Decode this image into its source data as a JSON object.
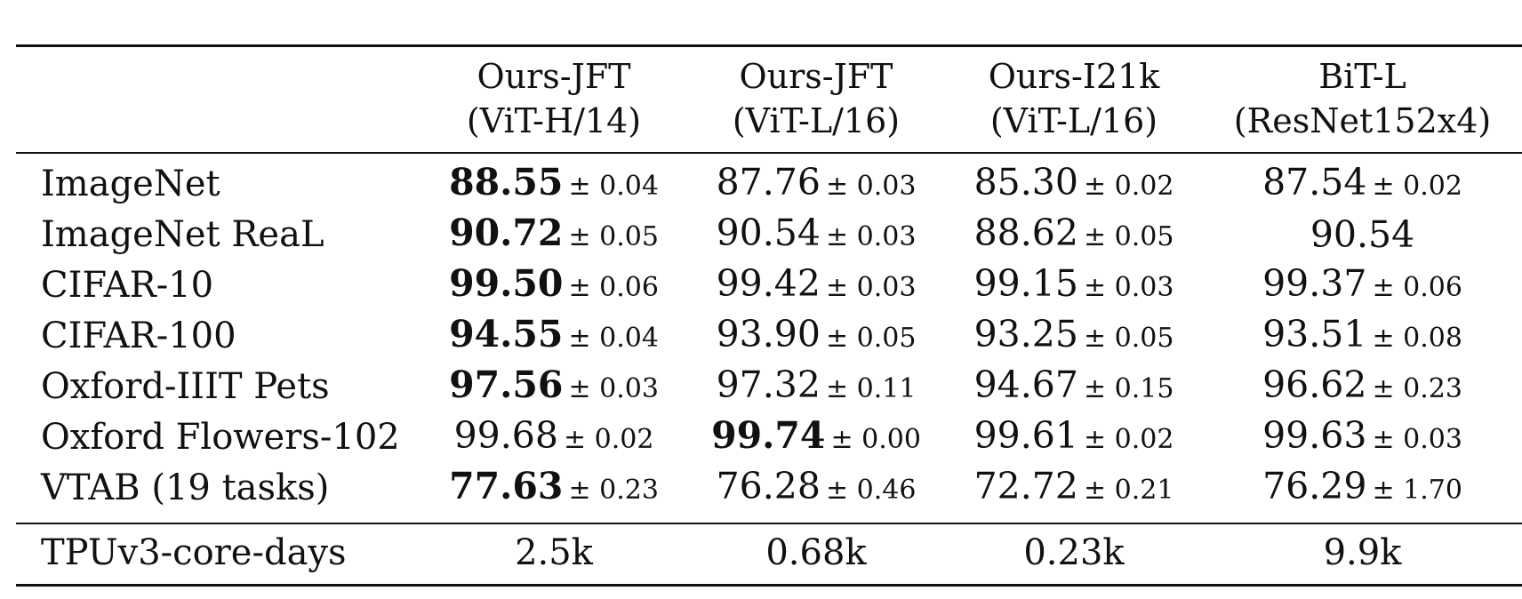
{
  "table": {
    "columns": [
      {
        "name": "Ours-JFT",
        "sub": "(ViT-H/14)"
      },
      {
        "name": "Ours-JFT",
        "sub": "(ViT-L/16)"
      },
      {
        "name": "Ours-I21k",
        "sub": "(ViT-L/16)"
      },
      {
        "name": "BiT-L",
        "sub": "(ResNet152x4)"
      }
    ],
    "rows": [
      {
        "label": "ImageNet",
        "cells": [
          {
            "value": "88.55",
            "pm": "± 0.04",
            "best": true
          },
          {
            "value": "87.76",
            "pm": "± 0.03"
          },
          {
            "value": "85.30",
            "pm": "± 0.02"
          },
          {
            "value": "87.54",
            "pm": "± 0.02"
          }
        ]
      },
      {
        "label": "ImageNet ReaL",
        "cells": [
          {
            "value": "90.72",
            "pm": "± 0.05",
            "best": true
          },
          {
            "value": "90.54",
            "pm": "± 0.03"
          },
          {
            "value": "88.62",
            "pm": "± 0.05"
          },
          {
            "value": "90.54",
            "pm": ""
          }
        ]
      },
      {
        "label": "CIFAR-10",
        "cells": [
          {
            "value": "99.50",
            "pm": "± 0.06",
            "best": true
          },
          {
            "value": "99.42",
            "pm": "± 0.03"
          },
          {
            "value": "99.15",
            "pm": "± 0.03"
          },
          {
            "value": "99.37",
            "pm": "± 0.06"
          }
        ]
      },
      {
        "label": "CIFAR-100",
        "cells": [
          {
            "value": "94.55",
            "pm": "± 0.04",
            "best": true
          },
          {
            "value": "93.90",
            "pm": "± 0.05"
          },
          {
            "value": "93.25",
            "pm": "± 0.05"
          },
          {
            "value": "93.51",
            "pm": "± 0.08"
          }
        ]
      },
      {
        "label": "Oxford-IIIT Pets",
        "cells": [
          {
            "value": "97.56",
            "pm": "± 0.03",
            "best": true
          },
          {
            "value": "97.32",
            "pm": "± 0.11"
          },
          {
            "value": "94.67",
            "pm": "± 0.15"
          },
          {
            "value": "96.62",
            "pm": "± 0.23"
          }
        ]
      },
      {
        "label": "Oxford Flowers-102",
        "cells": [
          {
            "value": "99.68",
            "pm": "± 0.02"
          },
          {
            "value": "99.74",
            "pm": "± 0.00",
            "best": true
          },
          {
            "value": "99.61",
            "pm": "± 0.02"
          },
          {
            "value": "99.63",
            "pm": "± 0.03"
          }
        ]
      },
      {
        "label": "VTAB (19 tasks)",
        "cells": [
          {
            "value": "77.63",
            "pm": "± 0.23",
            "best": true
          },
          {
            "value": "76.28",
            "pm": "± 0.46"
          },
          {
            "value": "72.72",
            "pm": "± 0.21"
          },
          {
            "value": "76.29",
            "pm": "± 1.70"
          }
        ]
      }
    ],
    "cost_row": {
      "label": "TPUv3-core-days",
      "values": [
        "2.5k",
        "0.68k",
        "0.23k",
        "9.9k"
      ]
    }
  }
}
